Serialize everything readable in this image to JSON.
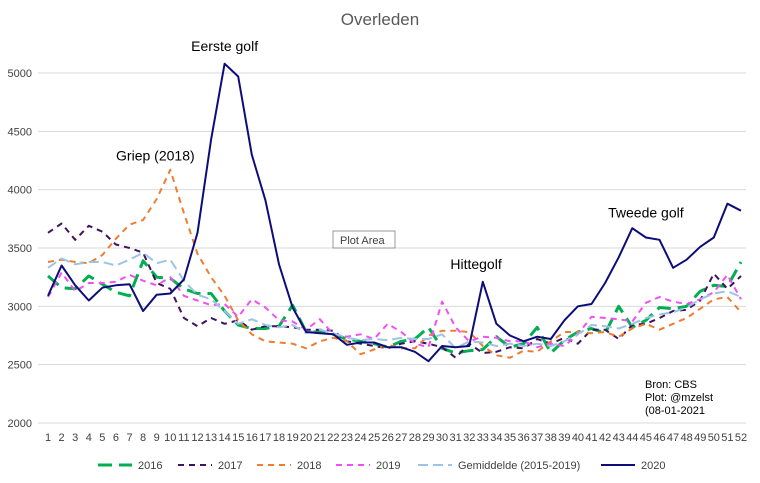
{
  "chart_data": {
    "type": "line",
    "title": "Overleden",
    "x": [
      1,
      2,
      3,
      4,
      5,
      6,
      7,
      8,
      9,
      10,
      11,
      12,
      13,
      14,
      15,
      16,
      17,
      18,
      19,
      20,
      21,
      22,
      23,
      24,
      25,
      26,
      27,
      28,
      29,
      30,
      31,
      32,
      33,
      34,
      35,
      36,
      37,
      38,
      39,
      40,
      41,
      42,
      43,
      44,
      45,
      46,
      47,
      48,
      49,
      50,
      51,
      52
    ],
    "x_tick_labels": [
      "1",
      "2",
      "3",
      "4",
      "5",
      "6",
      "7",
      "8",
      "9",
      "10",
      "11",
      "12",
      "13",
      "14",
      "15",
      "16",
      "17",
      "18",
      "19",
      "20",
      "21",
      "22",
      "23",
      "24",
      "25",
      "26",
      "27",
      "28",
      "29",
      "30",
      "31",
      "32",
      "33",
      "34",
      "35",
      "36",
      "37",
      "38",
      "39",
      "40",
      "41",
      "42",
      "43",
      "44",
      "45",
      "46",
      "47",
      "48",
      "49",
      "50",
      "51",
      "52"
    ],
    "y_tick_labels": [
      "2000",
      "2500",
      "3000",
      "3500",
      "4000",
      "4500",
      "5000"
    ],
    "ylim": [
      2000,
      5300
    ],
    "y_ticks": [
      2000,
      2500,
      3000,
      3500,
      4000,
      4500,
      5000
    ],
    "grid": true,
    "legend_position": "bottom",
    "series": [
      {
        "name": "2016",
        "color": "#00b050",
        "dash": "14,7",
        "width": 3,
        "values": [
          3260,
          3160,
          3150,
          3260,
          3190,
          3120,
          3090,
          3390,
          3250,
          3240,
          3150,
          3110,
          3110,
          2960,
          2840,
          2810,
          2810,
          2830,
          3010,
          2780,
          2780,
          2760,
          2720,
          2700,
          2680,
          2650,
          2700,
          2720,
          2820,
          2640,
          2600,
          2620,
          2630,
          2740,
          2650,
          2680,
          2820,
          2600,
          2710,
          2780,
          2810,
          2770,
          3000,
          2820,
          2880,
          2990,
          2980,
          3000,
          3130,
          3180,
          3170,
          3380
        ]
      },
      {
        "name": "2017",
        "color": "#3f1260",
        "dash": "6,5",
        "width": 2,
        "values": [
          3630,
          3710,
          3570,
          3690,
          3640,
          3530,
          3500,
          3460,
          3200,
          3150,
          2900,
          2830,
          2900,
          2850,
          2880,
          2800,
          2830,
          2830,
          2820,
          2800,
          2800,
          2790,
          2700,
          2680,
          2660,
          2640,
          2680,
          2700,
          2680,
          2650,
          2560,
          2680,
          2600,
          2610,
          2650,
          2640,
          2720,
          2680,
          2730,
          2680,
          2800,
          2800,
          2720,
          2840,
          2850,
          2900,
          2960,
          2970,
          3050,
          3280,
          3150,
          3260
        ]
      },
      {
        "name": "2018",
        "color": "#ed7d31",
        "dash": "6,5",
        "width": 2,
        "values": [
          3380,
          3400,
          3380,
          3370,
          3440,
          3580,
          3700,
          3740,
          3920,
          4170,
          3800,
          3450,
          3250,
          3090,
          2880,
          2760,
          2700,
          2690,
          2680,
          2640,
          2700,
          2730,
          2700,
          2590,
          2630,
          2670,
          2640,
          2640,
          2750,
          2790,
          2790,
          2780,
          2660,
          2580,
          2560,
          2620,
          2610,
          2700,
          2780,
          2780,
          2770,
          2780,
          2740,
          2810,
          2850,
          2800,
          2850,
          2900,
          2980,
          3060,
          3080,
          2950
        ]
      },
      {
        "name": "2019",
        "color": "#f34ef3",
        "dash": "6,5",
        "width": 2,
        "values": [
          3080,
          3290,
          3130,
          3200,
          3200,
          3210,
          3270,
          3220,
          3180,
          3250,
          3090,
          3050,
          3010,
          3020,
          2910,
          3060,
          2990,
          2880,
          2870,
          2800,
          2890,
          2760,
          2740,
          2760,
          2720,
          2850,
          2780,
          2680,
          2650,
          3040,
          2820,
          2700,
          2740,
          2730,
          2700,
          2700,
          2650,
          2680,
          2660,
          2760,
          2910,
          2900,
          2890,
          2870,
          3030,
          3080,
          3040,
          3020,
          3060,
          3120,
          3270,
          3060
        ]
      },
      {
        "name": "Gemiddelde (2015-2019)",
        "color": "#9dc3e6",
        "dash": "10,5",
        "width": 2,
        "values": [
          3330,
          3410,
          3360,
          3380,
          3380,
          3350,
          3400,
          3460,
          3370,
          3400,
          3220,
          3100,
          3060,
          2960,
          2850,
          2890,
          2840,
          2820,
          2840,
          2770,
          2800,
          2770,
          2730,
          2710,
          2720,
          2710,
          2730,
          2720,
          2720,
          2760,
          2640,
          2700,
          2690,
          2660,
          2680,
          2660,
          2680,
          2660,
          2700,
          2760,
          2840,
          2830,
          2810,
          2850,
          2900,
          2930,
          2950,
          2990,
          3060,
          3110,
          3130,
          3080
        ]
      },
      {
        "name": "2020",
        "color": "#0d0d7a",
        "dash": "",
        "width": 2,
        "values": [
          3090,
          3350,
          3180,
          3050,
          3160,
          3180,
          3190,
          2960,
          3100,
          3110,
          3230,
          3630,
          4430,
          5080,
          4970,
          4300,
          3910,
          3360,
          2990,
          2780,
          2770,
          2760,
          2670,
          2690,
          2690,
          2650,
          2650,
          2610,
          2530,
          2660,
          2650,
          2660,
          3210,
          2850,
          2750,
          2700,
          2740,
          2720,
          2880,
          3000,
          3020,
          3200,
          3420,
          3670,
          3590,
          3570,
          3330,
          3400,
          3510,
          3590,
          3880,
          3820
        ]
      }
    ],
    "annotations": [
      {
        "text": "Eerste golf",
        "x": 14,
        "y": 5190
      },
      {
        "text": "Griep (2018)",
        "x": 8.9,
        "y": 4250
      },
      {
        "text": "Tweede golf",
        "x": 45,
        "y": 3760
      },
      {
        "text": "Hittegolf",
        "x": 32.5,
        "y": 3320
      }
    ],
    "plot_area_label": "Plot Area",
    "source_lines": [
      "Bron: CBS",
      "Plot: @mzelst",
      "(08-01-2021"
    ]
  }
}
